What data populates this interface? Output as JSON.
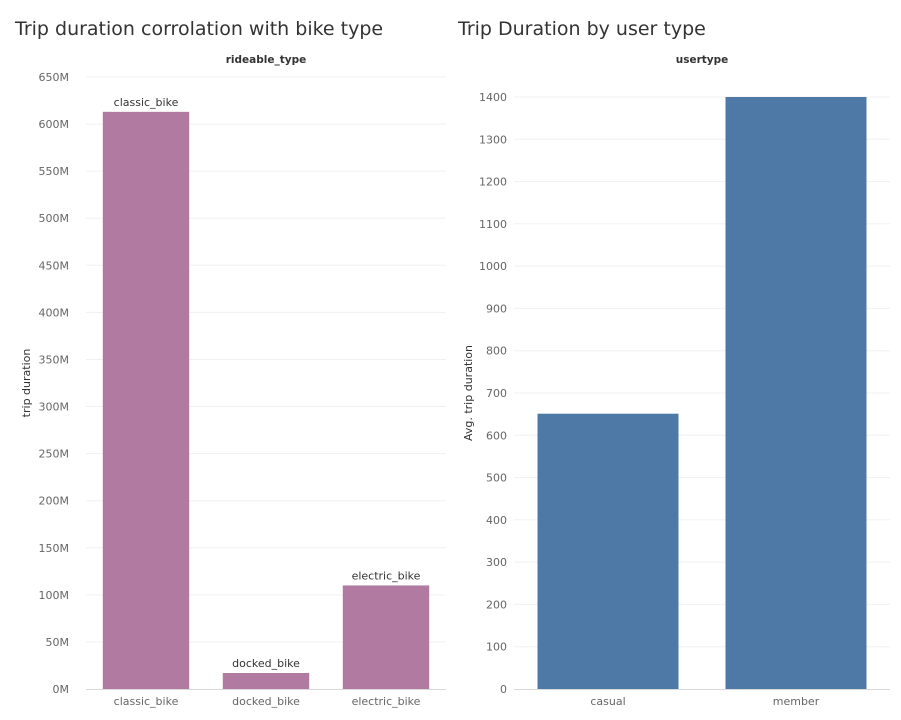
{
  "chart_data": [
    {
      "type": "bar",
      "title": "Trip duration corrolation with bike type",
      "header": "rideable_type",
      "xlabel": "",
      "ylabel": "trip duration",
      "categories": [
        "classic_bike",
        "docked_bike",
        "electric_bike"
      ],
      "values": [
        613000000,
        17000000,
        110000000
      ],
      "data_labels": [
        "classic_bike",
        "docked_bike",
        "electric_bike"
      ],
      "ylim": [
        0,
        650000000
      ],
      "yticks": [
        0,
        50000000,
        100000000,
        150000000,
        200000000,
        250000000,
        300000000,
        350000000,
        400000000,
        450000000,
        500000000,
        550000000,
        600000000,
        650000000
      ],
      "ytick_labels": [
        "0M",
        "50M",
        "100M",
        "150M",
        "200M",
        "250M",
        "300M",
        "350M",
        "400M",
        "450M",
        "500M",
        "550M",
        "600M",
        "650M"
      ],
      "color": "#b07aa1",
      "grid": true
    },
    {
      "type": "bar",
      "title": "Trip Duration by user type",
      "header": "usertype",
      "xlabel": "",
      "ylabel": "Avg. trip duration",
      "categories": [
        "casual",
        "member"
      ],
      "values": [
        651,
        1400
      ],
      "ylim": [
        0,
        1400
      ],
      "yticks": [
        0,
        100,
        200,
        300,
        400,
        500,
        600,
        700,
        800,
        900,
        1000,
        1100,
        1200,
        1300,
        1400
      ],
      "ytick_labels": [
        "0",
        "100",
        "200",
        "300",
        "400",
        "500",
        "600",
        "700",
        "800",
        "900",
        "1000",
        "1100",
        "1200",
        "1300",
        "1400"
      ],
      "color": "#4e79a7",
      "grid": true
    }
  ]
}
